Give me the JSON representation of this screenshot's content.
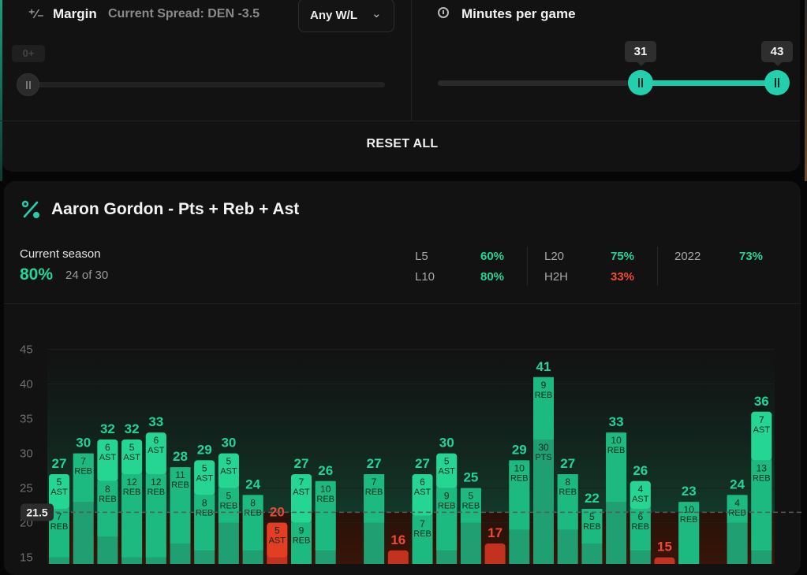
{
  "filters": {
    "margin": {
      "label": "Margin",
      "spread_text": "Current Spread: DEN -3.5",
      "select_value": "Any W/L",
      "slider_value": "0+"
    },
    "minutes": {
      "label": "Minutes per game",
      "min": 31,
      "max": 43
    },
    "reset_label": "RESET ALL"
  },
  "player": {
    "title": "Aaron Gordon - Pts + Reb + Ast",
    "season_label": "Current season",
    "season_pct": "80%",
    "season_count": "24 of 30",
    "stats": [
      {
        "label": "L5",
        "value": "60%",
        "status": "hit"
      },
      {
        "label": "L10",
        "value": "80%",
        "status": "hit"
      },
      {
        "label": "L20",
        "value": "75%",
        "status": "hit"
      },
      {
        "label": "H2H",
        "value": "33%",
        "status": "miss"
      },
      {
        "label": "2022",
        "value": "73%",
        "status": "hit"
      }
    ]
  },
  "colors": {
    "hit": "#20d49a",
    "miss": "#ee4a32",
    "accent": "#22d0ad"
  },
  "chart_data": {
    "type": "bar",
    "line": 21.5,
    "ylim": [
      15,
      45
    ],
    "yticks": [
      15,
      20,
      25,
      30,
      35,
      40,
      45
    ],
    "games": [
      {
        "total": 27,
        "ast": 5,
        "reb": 7
      },
      {
        "total": 30,
        "ast": null,
        "reb": 7
      },
      {
        "total": 32,
        "ast": 6,
        "reb": 8
      },
      {
        "total": 32,
        "ast": 5,
        "reb": 12
      },
      {
        "total": 33,
        "ast": 6,
        "reb": 12
      },
      {
        "total": 28,
        "ast": null,
        "reb": 11
      },
      {
        "total": 29,
        "ast": 5,
        "reb": 8
      },
      {
        "total": 30,
        "ast": 5,
        "reb": 5
      },
      {
        "total": 24,
        "ast": null,
        "reb": 8
      },
      {
        "total": 20,
        "ast": 5,
        "reb": null
      },
      {
        "total": 27,
        "ast": 7,
        "reb": 9
      },
      {
        "total": 26,
        "ast": null,
        "reb": 10
      },
      {
        "total": null,
        "ast": null,
        "reb": null
      },
      {
        "total": 27,
        "ast": null,
        "reb": 7
      },
      {
        "total": 16,
        "ast": null,
        "reb": null
      },
      {
        "total": 27,
        "ast": 6,
        "reb": 7
      },
      {
        "total": 30,
        "ast": 5,
        "reb": 9
      },
      {
        "total": 25,
        "ast": null,
        "reb": 5
      },
      {
        "total": 17,
        "ast": null,
        "reb": null
      },
      {
        "total": 29,
        "ast": null,
        "reb": 10
      },
      {
        "total": 41,
        "ast": null,
        "reb": 9,
        "pts": 30
      },
      {
        "total": 27,
        "ast": null,
        "reb": 8
      },
      {
        "total": 22,
        "ast": null,
        "reb": 5
      },
      {
        "total": 33,
        "ast": null,
        "reb": 10
      },
      {
        "total": 26,
        "ast": 4,
        "reb": 6
      },
      {
        "total": 15,
        "ast": null,
        "reb": null
      },
      {
        "total": 23,
        "ast": null,
        "reb": 10
      },
      {
        "total": null,
        "ast": null,
        "reb": null
      },
      {
        "total": 24,
        "ast": null,
        "reb": 4
      },
      {
        "total": 36,
        "ast": 7,
        "reb": 13
      }
    ],
    "stat_labels": {
      "ast": "AST",
      "reb": "REB",
      "pts": "PTS"
    }
  }
}
